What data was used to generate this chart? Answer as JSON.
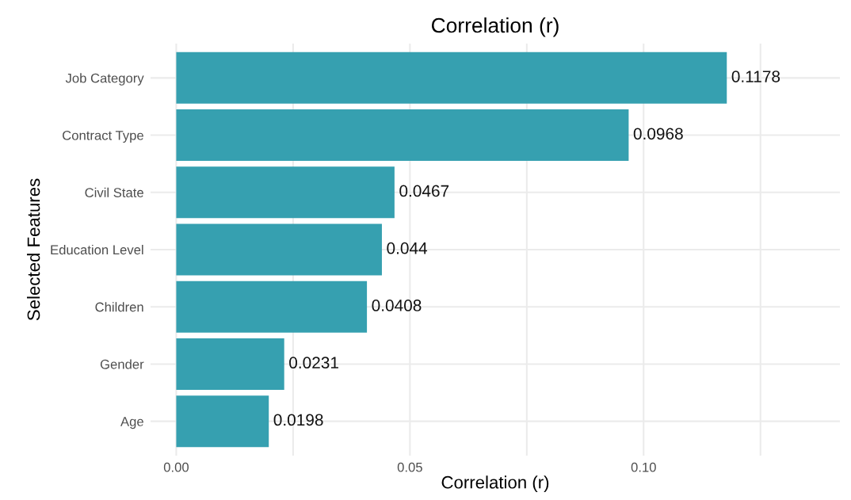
{
  "chart_data": {
    "type": "bar",
    "orientation": "horizontal",
    "title": "Correlation (r)",
    "xlabel": "Correlation (r)",
    "ylabel": "Selected Features",
    "categories": [
      "Job Category",
      "Contract Type",
      "Civil State",
      "Education Level",
      "Children",
      "Gender",
      "Age"
    ],
    "values": [
      0.1178,
      0.0968,
      0.0467,
      0.044,
      0.0408,
      0.0231,
      0.0198
    ],
    "color": "#36a0b0",
    "value_labels": [
      "0.1178",
      "0.0968",
      "0.0467",
      "0.044",
      "0.0408",
      "0.0231",
      "0.0198"
    ],
    "xlim": [
      -0.0055,
      0.142
    ],
    "xticks": [
      {
        "value": 0,
        "label": "0.00"
      },
      {
        "value": 0.025,
        "label": null
      },
      {
        "value": 0.05,
        "label": "0.05"
      },
      {
        "value": 0.075,
        "label": null
      },
      {
        "value": 0.1,
        "label": "0.10"
      },
      {
        "value": 0.125,
        "label": null
      }
    ],
    "grid": true,
    "legend": false
  }
}
